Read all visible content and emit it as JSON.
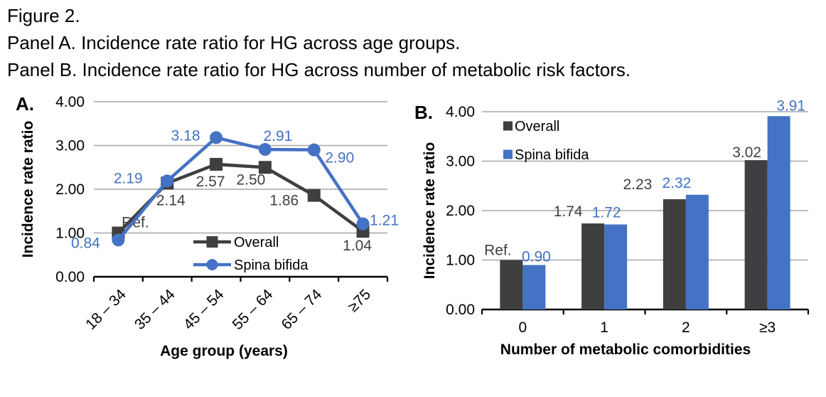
{
  "header": {
    "figure_label": "Figure 2.",
    "panel_a_caption": "Panel A. Incidence rate ratio for HG across age groups.",
    "panel_b_caption": "Panel B. Incidence rate ratio for HG across number of metabolic risk factors."
  },
  "colors": {
    "overall": "#3f3f3f",
    "spina_bifida": "#4472c4",
    "gridline": "#a6a6a6",
    "axis": "#000000",
    "label_dark": "#404040",
    "text": "#000000"
  },
  "chart_data": [
    {
      "id": "panel_a",
      "panel_label": "A.",
      "type": "line",
      "xlabel": "Age group (years)",
      "ylabel": "Incidence rate ratio",
      "ylim": [
        0,
        4
      ],
      "yticks": [
        "0.00",
        "1.00",
        "2.00",
        "3.00",
        "4.00"
      ],
      "grid": true,
      "legend_position": "inside-bottom-center",
      "categories": [
        "18 – 34",
        "35 – 44",
        "45 – 54",
        "55 – 64",
        "65 – 74",
        "≥75"
      ],
      "series": [
        {
          "name": "Overall",
          "marker": "square",
          "color_key": "overall",
          "values": [
            1.0,
            2.14,
            2.57,
            2.5,
            1.86,
            1.04
          ],
          "point_labels": [
            "Ref.",
            "2.14",
            "2.57",
            "2.50",
            "1.86",
            "1.04"
          ],
          "label_offsets": [
            [
              24,
              -15
            ],
            [
              5,
              24
            ],
            [
              -8,
              24
            ],
            [
              -20,
              17
            ],
            [
              -42,
              7
            ],
            [
              -8,
              20
            ]
          ]
        },
        {
          "name": "Spina bifida",
          "marker": "circle",
          "color_key": "spina_bifida",
          "values": [
            0.84,
            2.19,
            3.18,
            2.91,
            2.9,
            1.21
          ],
          "point_labels": [
            "0.84",
            "2.19",
            "3.18",
            "2.91",
            "2.90",
            "1.21"
          ],
          "label_offsets": [
            [
              -46,
              4
            ],
            [
              -55,
              -4
            ],
            [
              -43,
              -3
            ],
            [
              18,
              -19
            ],
            [
              36,
              11
            ],
            [
              30,
              -5
            ]
          ]
        }
      ]
    },
    {
      "id": "panel_b",
      "panel_label": "B.",
      "type": "bar",
      "xlabel": "Number of metabolic comorbidities",
      "ylabel": "Incidence rate ratio",
      "ylim": [
        0,
        4
      ],
      "yticks": [
        "0.00",
        "1.00",
        "2.00",
        "3.00",
        "4.00"
      ],
      "grid": true,
      "legend_position": "inside-top-left",
      "categories": [
        "0",
        "1",
        "2",
        "≥3"
      ],
      "series": [
        {
          "name": "Overall",
          "color_key": "overall",
          "values": [
            1.0,
            1.74,
            2.23,
            3.02
          ],
          "point_labels": [
            "Ref.",
            "1.74",
            "2.23",
            "3.02"
          ],
          "label_offsets": [
            [
              -19,
              -14
            ],
            [
              -35,
              -17
            ],
            [
              -52,
              -21
            ],
            [
              -13,
              -11
            ]
          ]
        },
        {
          "name": "Spina bifida",
          "color_key": "spina_bifida",
          "values": [
            0.9,
            1.72,
            2.32,
            3.91
          ],
          "point_labels": [
            "0.90",
            "1.72",
            "2.32",
            "3.91"
          ],
          "label_offsets": [
            [
              3,
              -12
            ],
            [
              -13,
              -17
            ],
            [
              -29,
              -17
            ],
            [
              17,
              -15
            ]
          ]
        }
      ]
    }
  ]
}
